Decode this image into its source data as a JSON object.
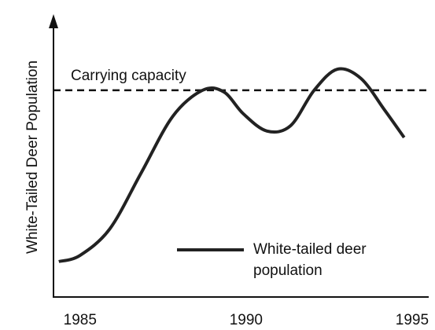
{
  "chart_data": {
    "type": "line",
    "ylabel": "White-Tailed Deer Population",
    "x": [
      1984.36,
      1985,
      1985.9,
      1986.84,
      1987.79,
      1988.69,
      1989.33,
      1989.92,
      1990.63,
      1991.34,
      1992.05,
      1992.75,
      1993.46,
      1994.17,
      1994.76
    ],
    "series": [
      {
        "name": "White-tailed deer population",
        "color": "#222222",
        "values": [
          12.6,
          14.8,
          24.3,
          44.1,
          64.2,
          73.5,
          72.9,
          65.1,
          59.0,
          60.9,
          73.5,
          81.0,
          77.7,
          66.5,
          56.7
        ]
      }
    ],
    "reference_line": {
      "label": "Carrying capacity",
      "value": 73.5
    },
    "xlim": [
      1984.2,
      1995.5
    ],
    "xticks": [
      1985,
      1990,
      1995
    ],
    "ylim": [
      0,
      100
    ]
  }
}
